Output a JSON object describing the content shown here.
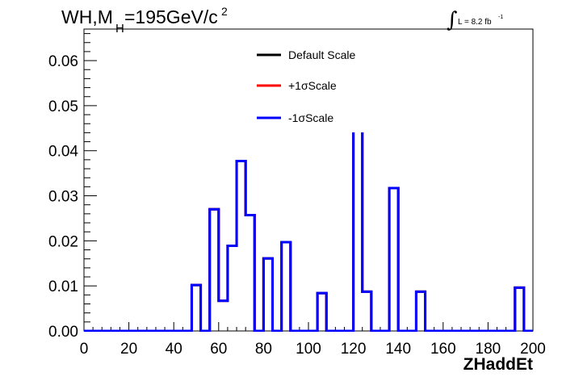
{
  "title": {
    "prefix": "WH,M",
    "subscript": "H",
    "suffix": "=195GeV/c",
    "superscript": "2"
  },
  "luminosity": {
    "integral_symbol": "∫",
    "text": "L = 8.2 fb",
    "superscript": "-1"
  },
  "colors": {
    "default": "#000000",
    "plus": "#ff0000",
    "minus": "#0000ff",
    "frame": "#000000"
  },
  "chart_data": {
    "type": "line",
    "xlabel": "ZHaddEt",
    "ylabel": "",
    "xlim": [
      0,
      200
    ],
    "ylim": [
      0,
      0.067
    ],
    "x_ticks": [
      0,
      20,
      40,
      60,
      80,
      100,
      120,
      140,
      160,
      180,
      200
    ],
    "y_ticks": [
      0.0,
      0.01,
      0.02,
      0.03,
      0.04,
      0.05,
      0.06
    ],
    "y_tick_labels": [
      "0.00",
      "0.01",
      "0.02",
      "0.03",
      "0.04",
      "0.05",
      "0.06"
    ],
    "grid": false,
    "legend_position": "top-center",
    "bin_edges": [
      0,
      4,
      8,
      12,
      16,
      20,
      24,
      28,
      32,
      36,
      40,
      44,
      48,
      52,
      56,
      60,
      64,
      68,
      72,
      76,
      80,
      84,
      88,
      92,
      96,
      100,
      104,
      108,
      112,
      116,
      120,
      124,
      128,
      132,
      136,
      140,
      144,
      148,
      152,
      156,
      160,
      164,
      168,
      172,
      176,
      180,
      184,
      188,
      192,
      196,
      200
    ],
    "series": [
      {
        "name": "Default Scale",
        "color": "#000000",
        "values": [
          0,
          0,
          0,
          0,
          0,
          0,
          0,
          0,
          0,
          0,
          0,
          0,
          0.0102,
          0,
          0.027,
          0.0067,
          0.0189,
          0.0377,
          0.0257,
          0,
          0.0161,
          0,
          0.0197,
          0,
          0,
          0,
          0.0084,
          0,
          0,
          0,
          0.0445,
          0.0087,
          0,
          0,
          0.0317,
          0,
          0,
          0.0087,
          0,
          0,
          0,
          0,
          0,
          0,
          0,
          0,
          0,
          0,
          0.0096,
          0
        ]
      },
      {
        "name": "+1σScale",
        "color": "#ff0000",
        "values": [
          0,
          0,
          0,
          0,
          0,
          0,
          0,
          0,
          0,
          0,
          0,
          0,
          0.0102,
          0,
          0.027,
          0.0067,
          0.0189,
          0.0377,
          0.0257,
          0,
          0.0161,
          0,
          0.0197,
          0,
          0,
          0,
          0.0084,
          0,
          0,
          0,
          0.0445,
          0.0087,
          0,
          0,
          0.0317,
          0,
          0,
          0.0087,
          0,
          0,
          0,
          0,
          0,
          0,
          0,
          0,
          0,
          0,
          0.0096,
          0
        ]
      },
      {
        "name": "-1σScale",
        "color": "#0000ff",
        "values": [
          0,
          0,
          0,
          0,
          0,
          0,
          0,
          0,
          0,
          0,
          0,
          0,
          0.0102,
          0,
          0.027,
          0.0067,
          0.0189,
          0.0377,
          0.0257,
          0,
          0.0161,
          0,
          0.0197,
          0,
          0,
          0,
          0.0084,
          0,
          0,
          0,
          0.0445,
          0.0087,
          0,
          0,
          0.0317,
          0,
          0,
          0.0087,
          0,
          0,
          0,
          0,
          0,
          0,
          0,
          0,
          0,
          0,
          0.0096,
          0
        ]
      }
    ]
  }
}
